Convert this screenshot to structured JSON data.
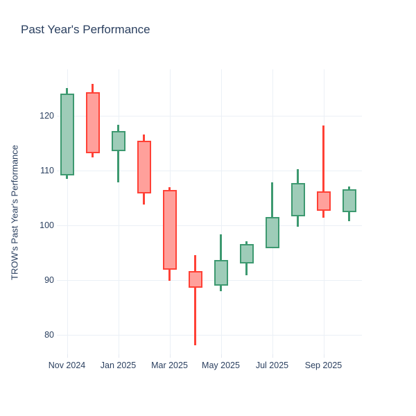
{
  "header": {
    "title": "Past Year's Performance"
  },
  "chart_data": {
    "type": "candlestick",
    "title": "Past Year's Performance",
    "xlabel": "",
    "ylabel": "TROW's Past Year's Performance",
    "ylim": [
      76.4,
      128.5
    ],
    "grid": true,
    "yticks": [
      80,
      90,
      100,
      110,
      120
    ],
    "xticks": [
      {
        "label": "Nov 2024",
        "month_index": 0
      },
      {
        "label": "Jan 2025",
        "month_index": 2
      },
      {
        "label": "Mar 2025",
        "month_index": 4
      },
      {
        "label": "May 2025",
        "month_index": 6
      },
      {
        "label": "Jul 2025",
        "month_index": 8
      },
      {
        "label": "Sep 2025",
        "month_index": 10
      }
    ],
    "candles": [
      {
        "month": "Nov 2024",
        "open": 109.1,
        "high": 125.1,
        "low": 108.5,
        "close": 124.1
      },
      {
        "month": "Dec 2024",
        "open": 124.3,
        "high": 125.9,
        "low": 112.4,
        "close": 113.1
      },
      {
        "month": "Jan 2025",
        "open": 113.6,
        "high": 118.3,
        "low": 107.8,
        "close": 117.2
      },
      {
        "month": "Feb 2025",
        "open": 115.4,
        "high": 116.6,
        "low": 103.8,
        "close": 105.8
      },
      {
        "month": "Mar 2025",
        "open": 106.5,
        "high": 107.0,
        "low": 89.8,
        "close": 91.9
      },
      {
        "month": "Apr 2025",
        "open": 91.6,
        "high": 94.5,
        "low": 78.0,
        "close": 88.6
      },
      {
        "month": "May 2025",
        "open": 88.9,
        "high": 98.3,
        "low": 87.9,
        "close": 93.7
      },
      {
        "month": "Jun 2025",
        "open": 93.0,
        "high": 97.1,
        "low": 90.8,
        "close": 96.6
      },
      {
        "month": "Jul 2025",
        "open": 95.8,
        "high": 107.9,
        "low": 95.8,
        "close": 101.5
      },
      {
        "month": "Aug 2025",
        "open": 101.6,
        "high": 110.2,
        "low": 99.7,
        "close": 107.7
      },
      {
        "month": "Sep 2025",
        "open": 106.2,
        "high": 118.2,
        "low": 101.4,
        "close": 102.7
      },
      {
        "month": "Oct 2025",
        "open": 102.4,
        "high": 107.1,
        "low": 100.7,
        "close": 106.6
      }
    ],
    "colors": {
      "increasing_line": "#3D9970",
      "increasing_fill": "#9ECCB8",
      "decreasing_line": "#FF4136",
      "decreasing_fill": "#FFA09B",
      "grid": "#EBF0F6",
      "tick_mark": "#E3E8F0",
      "text": "#2a3f5f",
      "background": "#FFFFFF"
    }
  }
}
